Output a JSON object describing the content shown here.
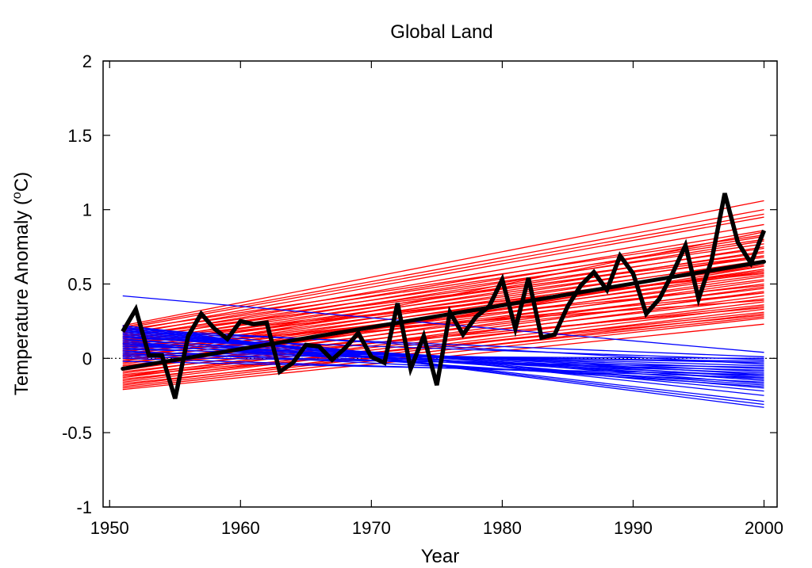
{
  "chart_data": {
    "type": "line",
    "title": "Global Land",
    "xlabel": "Year",
    "ylabel_main": "Temperature Anomaly (",
    "ylabel_sup": "o",
    "ylabel_tail": "C)",
    "xlim": [
      1949.5,
      2001
    ],
    "ylim": [
      -1,
      2
    ],
    "xticks": [
      1950,
      1960,
      1970,
      1980,
      1990,
      2000
    ],
    "yticks": [
      -1,
      -0.5,
      0,
      0.5,
      1,
      1.5,
      2
    ],
    "ytick_labels": [
      "-1",
      "-0.5",
      "0",
      "0.5",
      "1",
      "1.5",
      "2"
    ],
    "grid": false,
    "legend": "none",
    "colors": {
      "observed": "#000000",
      "warming_trends": "#ff0000",
      "cooling_trends": "#0000ff",
      "zero_line": "#000000"
    },
    "observed": {
      "x": [
        1951,
        1952,
        1953,
        1954,
        1955,
        1956,
        1957,
        1958,
        1959,
        1960,
        1961,
        1962,
        1963,
        1964,
        1965,
        1966,
        1967,
        1968,
        1969,
        1970,
        1971,
        1972,
        1973,
        1974,
        1975,
        1976,
        1977,
        1978,
        1979,
        1980,
        1981,
        1982,
        1983,
        1984,
        1985,
        1986,
        1987,
        1988,
        1989,
        1990,
        1991,
        1992,
        1993,
        1994,
        1995,
        1996,
        1997,
        1998,
        1999,
        2000
      ],
      "y": [
        0.18,
        0.33,
        0.02,
        0.02,
        -0.27,
        0.15,
        0.3,
        0.2,
        0.13,
        0.25,
        0.23,
        0.24,
        -0.09,
        -0.03,
        0.09,
        0.08,
        -0.01,
        0.07,
        0.17,
        0.01,
        -0.03,
        0.37,
        -0.07,
        0.15,
        -0.18,
        0.31,
        0.16,
        0.28,
        0.35,
        0.53,
        0.2,
        0.54,
        0.14,
        0.16,
        0.35,
        0.49,
        0.58,
        0.46,
        0.69,
        0.57,
        0.3,
        0.4,
        0.57,
        0.76,
        0.4,
        0.66,
        1.11,
        0.78,
        0.64,
        0.86
      ]
    },
    "observed_trend": {
      "x": [
        1951,
        2000
      ],
      "y": [
        -0.07,
        0.65
      ]
    },
    "model_trends_warming": [
      [
        -0.21,
        0.23
      ],
      [
        -0.2,
        0.27
      ],
      [
        -0.19,
        0.3
      ],
      [
        -0.18,
        0.33
      ],
      [
        -0.17,
        0.28
      ],
      [
        -0.16,
        0.35
      ],
      [
        -0.15,
        0.38
      ],
      [
        -0.14,
        0.31
      ],
      [
        -0.13,
        0.42
      ],
      [
        -0.12,
        0.45
      ],
      [
        -0.11,
        0.36
      ],
      [
        -0.1,
        0.48
      ],
      [
        -0.09,
        0.4
      ],
      [
        -0.08,
        0.52
      ],
      [
        -0.07,
        0.44
      ],
      [
        -0.06,
        0.55
      ],
      [
        -0.05,
        0.47
      ],
      [
        -0.04,
        0.58
      ],
      [
        -0.03,
        0.5
      ],
      [
        -0.02,
        0.6
      ],
      [
        -0.01,
        0.53
      ],
      [
        0.0,
        0.63
      ],
      [
        0.01,
        0.56
      ],
      [
        0.02,
        0.66
      ],
      [
        0.03,
        0.59
      ],
      [
        0.04,
        0.69
      ],
      [
        0.05,
        0.62
      ],
      [
        0.06,
        0.72
      ],
      [
        0.07,
        0.65
      ],
      [
        0.08,
        0.75
      ],
      [
        0.09,
        0.68
      ],
      [
        0.1,
        0.79
      ],
      [
        0.11,
        0.71
      ],
      [
        0.12,
        0.82
      ],
      [
        0.13,
        0.74
      ],
      [
        0.14,
        0.86
      ],
      [
        0.15,
        0.77
      ],
      [
        0.16,
        0.9
      ],
      [
        0.17,
        0.8
      ],
      [
        0.18,
        0.95
      ],
      [
        0.19,
        0.83
      ],
      [
        0.2,
        0.97
      ],
      [
        0.21,
        1.0
      ],
      [
        0.22,
        1.06
      ],
      [
        -0.05,
        0.34
      ],
      [
        0.02,
        0.44
      ],
      [
        0.08,
        0.39
      ],
      [
        0.12,
        0.57
      ],
      [
        -0.12,
        0.29
      ],
      [
        -0.08,
        0.62
      ],
      [
        0.05,
        0.49
      ],
      [
        0.15,
        0.69
      ],
      [
        -0.02,
        0.85
      ],
      [
        0.1,
        0.58
      ]
    ],
    "model_trends_cooling": [
      [
        0.42,
        0.04
      ],
      [
        0.22,
        -0.33
      ],
      [
        0.21,
        -0.31
      ],
      [
        0.2,
        -0.29
      ],
      [
        0.19,
        -0.22
      ],
      [
        0.18,
        -0.2
      ],
      [
        0.17,
        -0.17
      ],
      [
        0.16,
        -0.15
      ],
      [
        0.15,
        -0.13
      ],
      [
        0.14,
        -0.11
      ],
      [
        0.13,
        -0.18
      ],
      [
        0.12,
        -0.09
      ],
      [
        0.11,
        -0.14
      ],
      [
        0.1,
        -0.07
      ],
      [
        0.09,
        -0.12
      ],
      [
        0.08,
        -0.05
      ],
      [
        0.07,
        -0.1
      ],
      [
        0.06,
        -0.03
      ],
      [
        0.05,
        -0.16
      ],
      [
        0.04,
        -0.02
      ],
      [
        0.03,
        -0.08
      ],
      [
        0.02,
        0.0
      ],
      [
        0.01,
        -0.06
      ],
      [
        0.0,
        -0.13
      ],
      [
        0.2,
        -0.04
      ],
      [
        0.14,
        -0.01
      ],
      [
        0.22,
        -0.25
      ],
      [
        0.1,
        -0.19
      ],
      [
        -0.02,
        -0.11
      ],
      [
        0.18,
        0.01
      ]
    ]
  }
}
